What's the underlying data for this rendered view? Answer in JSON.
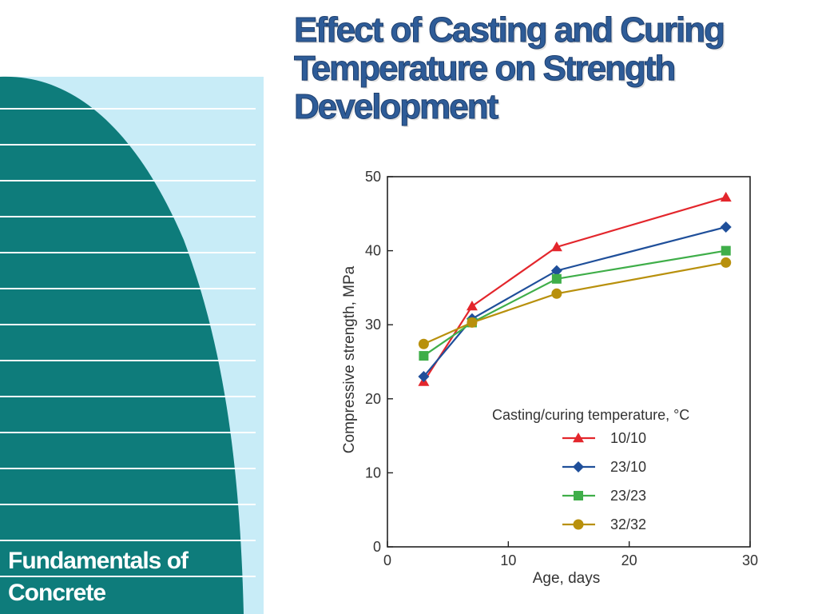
{
  "slide": {
    "title_lines": [
      "Effect of Casting and Curing",
      "Temperature on Strength",
      "Development"
    ],
    "footer_lines": [
      "Fundamentals of",
      "Concrete"
    ]
  },
  "theme": {
    "teal": "#0e7c7b",
    "light_blue": "#c8ecf7",
    "title_color": "#2e5c98"
  },
  "chart_data": {
    "type": "line",
    "xlabel": "Age, days",
    "ylabel": "Compressive strength, MPa",
    "xlim": [
      0,
      30
    ],
    "ylim": [
      0,
      50
    ],
    "xticks": [
      0,
      10,
      20,
      30
    ],
    "yticks": [
      0,
      10,
      20,
      30,
      40,
      50
    ],
    "grid": false,
    "legend_title": "Casting/curing temperature, °C",
    "legend_position": "bottom-right",
    "x": [
      3,
      7,
      14,
      28
    ],
    "series": [
      {
        "name": "10/10",
        "values": [
          22.3,
          32.5,
          40.5,
          47.2
        ],
        "color": "#e3262c",
        "marker": "triangle"
      },
      {
        "name": "23/10",
        "values": [
          23.0,
          30.8,
          37.3,
          43.2
        ],
        "color": "#1f4f9a",
        "marker": "diamond"
      },
      {
        "name": "23/23",
        "values": [
          25.8,
          30.3,
          36.2,
          40.0
        ],
        "color": "#3fae49",
        "marker": "square"
      },
      {
        "name": "32/32",
        "values": [
          27.4,
          30.3,
          34.2,
          38.4
        ],
        "color": "#b8900c",
        "marker": "circle"
      }
    ]
  }
}
